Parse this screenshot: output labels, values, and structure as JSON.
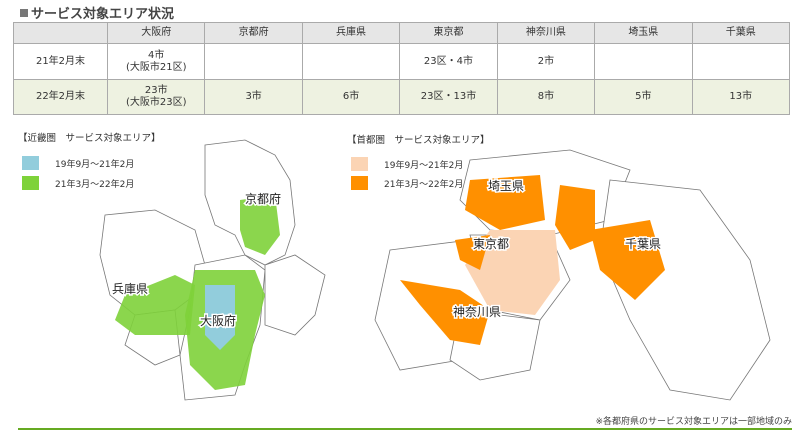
{
  "title": "サービス対象エリア状況",
  "table": {
    "headers": [
      "",
      "大阪府",
      "京都府",
      "兵庫県",
      "東京都",
      "神奈川県",
      "埼玉県",
      "千葉県"
    ],
    "rows": [
      {
        "label": "21年2月末",
        "cells": [
          "4市\n(大阪市21区)",
          "",
          "",
          "23区・4市",
          "2市",
          "",
          ""
        ]
      },
      {
        "label": "22年2月末",
        "cells": [
          "23市\n(大阪市23区)",
          "3市",
          "6市",
          "23区・13市",
          "8市",
          "5市",
          "13市"
        ]
      }
    ]
  },
  "kinki": {
    "title": "【近畿圏　サービス対象エリア】",
    "legend": [
      "19年9月～21年2月",
      "21年3月～22年2月"
    ],
    "colors": [
      "#92cddc",
      "#7ed23a"
    ],
    "labels": {
      "kyoto": "京都府",
      "hyogo": "兵庫県",
      "osaka": "大阪府"
    }
  },
  "shutoken": {
    "title": "【首都圏　サービス対象エリア】",
    "legend": [
      "19年9月～21年2月",
      "21年3月～22年2月"
    ],
    "colors": [
      "#fbd4b4",
      "#ff9000"
    ],
    "labels": {
      "saitama": "埼玉県",
      "tokyo": "東京都",
      "chiba": "千葉県",
      "kanagawa": "神奈川県"
    }
  },
  "footnote": "※各都府県のサービス対象エリアは一部地域のみ"
}
